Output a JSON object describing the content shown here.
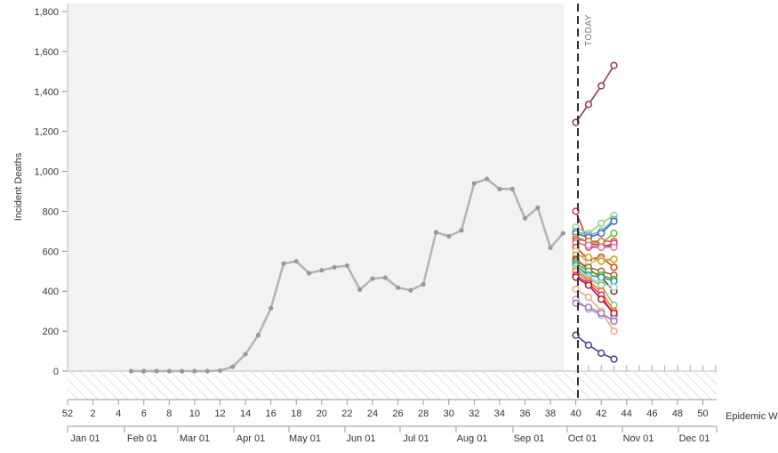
{
  "chart_data": {
    "type": "line",
    "ylabel": "Incident Deaths",
    "xlabel": "Epidemic Week",
    "ylim": [
      0,
      1800
    ],
    "y_ticks": [
      0,
      200,
      400,
      600,
      800,
      1000,
      1200,
      1400,
      1600,
      1800
    ],
    "y_tick_labels": [
      "0",
      "200",
      "400",
      "600",
      "800",
      "1,000",
      "1,200",
      "1,400",
      "1,600",
      "1,800"
    ],
    "week_ticks": [
      52,
      2,
      4,
      6,
      8,
      10,
      12,
      14,
      16,
      18,
      20,
      22,
      24,
      26,
      28,
      30,
      32,
      34,
      36,
      38,
      40,
      42,
      44,
      46,
      48,
      50
    ],
    "week_tick_labels": [
      "52",
      "2",
      "4",
      "6",
      "8",
      "10",
      "12",
      "14",
      "16",
      "18",
      "20",
      "22",
      "24",
      "26",
      "28",
      "30",
      "32",
      "34",
      "36",
      "38",
      "40",
      "42",
      "44",
      "46",
      "48",
      "50"
    ],
    "month_labels": [
      "Jan 01",
      "Feb 01",
      "Mar 01",
      "Apr 01",
      "May 01",
      "Jun 01",
      "Jul 01",
      "Aug 01",
      "Sep 01",
      "Oct 01",
      "Nov 01",
      "Dec 01"
    ],
    "today_label": "TODAY",
    "today_week": 40,
    "observed": {
      "weeks": [
        5,
        6,
        7,
        8,
        9,
        10,
        11,
        12,
        13,
        14,
        15,
        16,
        17,
        18,
        19,
        20,
        21,
        22,
        23,
        24,
        25,
        26,
        27,
        28,
        29,
        30,
        31,
        32,
        33,
        34,
        35,
        36,
        37,
        38,
        39
      ],
      "values": [
        0,
        0,
        0,
        0,
        0,
        0,
        0,
        3,
        22,
        85,
        180,
        315,
        538,
        550,
        490,
        505,
        520,
        528,
        408,
        463,
        468,
        418,
        405,
        435,
        695,
        675,
        705,
        940,
        962,
        912,
        912,
        765,
        818,
        618,
        690
      ],
      "color": "#b3b3b3"
    },
    "forecast_weeks": [
      40,
      41,
      42,
      43
    ],
    "series": [
      {
        "values": [
          1245,
          1335,
          1428,
          1530
        ],
        "color": "#8e3a59"
      },
      {
        "values": [
          800,
          640,
          630,
          625
        ],
        "color": "#d62f4c"
      },
      {
        "values": [
          720,
          690,
          740,
          780
        ],
        "color": "#9ecf72"
      },
      {
        "values": [
          700,
          680,
          700,
          760
        ],
        "color": "#5fbcd3"
      },
      {
        "values": [
          690,
          670,
          690,
          750
        ],
        "color": "#3b6fb6"
      },
      {
        "values": [
          670,
          650,
          640,
          690
        ],
        "color": "#76b041"
      },
      {
        "values": [
          660,
          650,
          650,
          650
        ],
        "color": "#e3672b"
      },
      {
        "values": [
          650,
          620,
          620,
          640
        ],
        "color": "#c54b8c"
      },
      {
        "values": [
          640,
          630,
          620,
          620
        ],
        "color": "#e27c9a"
      },
      {
        "values": [
          620,
          560,
          570,
          520
        ],
        "color": "#cc4c02"
      },
      {
        "values": [
          600,
          540,
          560,
          560
        ],
        "color": "#f0b27a"
      },
      {
        "values": [
          580,
          570,
          550,
          560
        ],
        "color": "#c9a227"
      },
      {
        "values": [
          560,
          510,
          470,
          400
        ],
        "color": "#5d3a1a"
      },
      {
        "values": [
          550,
          520,
          500,
          480
        ],
        "color": "#996633"
      },
      {
        "values": [
          540,
          500,
          480,
          460
        ],
        "color": "#66a61e"
      },
      {
        "values": [
          530,
          480,
          470,
          450
        ],
        "color": "#1f9e89"
      },
      {
        "values": [
          520,
          470,
          440,
          420
        ],
        "color": "#a6cee3"
      },
      {
        "values": [
          510,
          460,
          430,
          330
        ],
        "color": "#7fc97f"
      },
      {
        "values": [
          500,
          450,
          400,
          300
        ],
        "color": "#ff7f00"
      },
      {
        "values": [
          480,
          440,
          380,
          280
        ],
        "color": "#e7298a"
      },
      {
        "values": [
          470,
          430,
          360,
          290
        ],
        "color": "#b2182b"
      },
      {
        "values": [
          410,
          370,
          300,
          200
        ],
        "color": "#f4a582"
      },
      {
        "values": [
          360,
          310,
          280,
          260
        ],
        "color": "#b8a9d9"
      },
      {
        "values": [
          340,
          320,
          290,
          250
        ],
        "color": "#9e7bb5"
      },
      {
        "values": [
          180,
          130,
          90,
          60
        ],
        "color": "#4b3d8f"
      }
    ],
    "colors": {
      "past_background": "#f2f2f2",
      "axis": "#aaaaaa",
      "today_line": "#333333",
      "hatch": "#e6e6e6"
    }
  }
}
